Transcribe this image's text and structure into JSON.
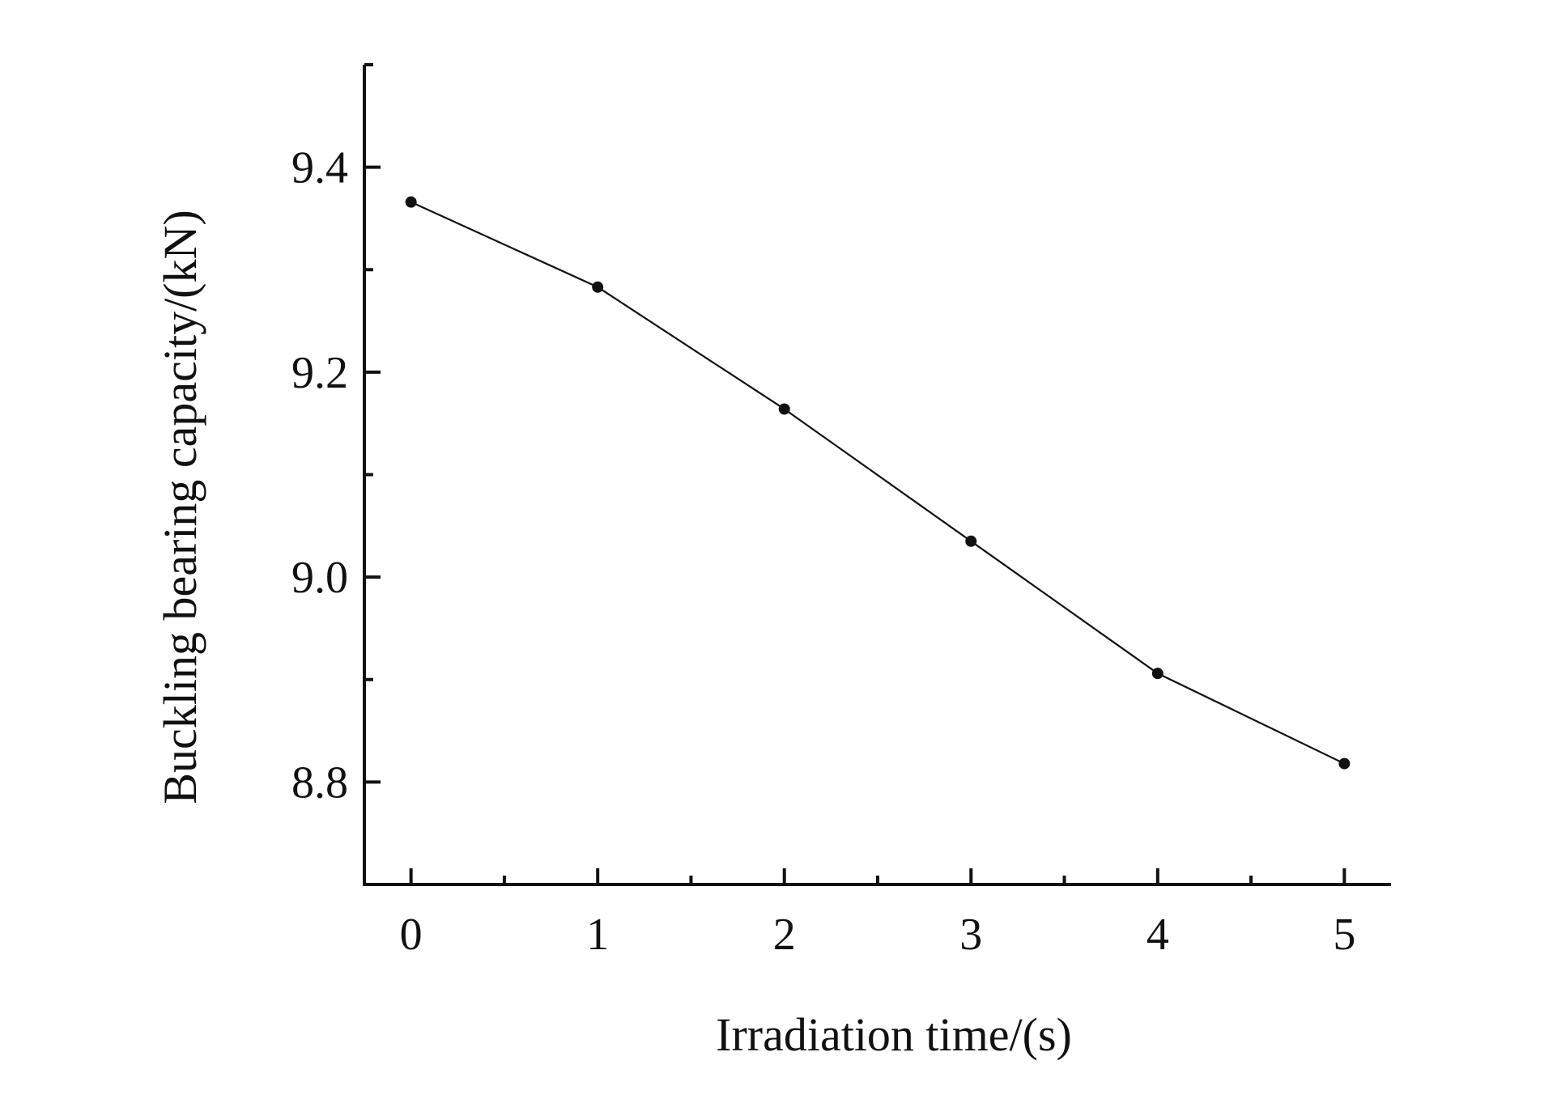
{
  "chart_data": {
    "type": "line",
    "title": "",
    "xlabel": "Irradiation time/(s)",
    "ylabel": "Buckling bearing capacity/(kN)",
    "x": [
      0,
      1,
      2,
      3,
      4,
      5
    ],
    "series": [
      {
        "values": [
          9.366,
          9.283,
          9.164,
          9.035,
          8.906,
          8.818
        ]
      }
    ],
    "xlim": [
      -0.25,
      5.25
    ],
    "ylim": [
      8.7,
      9.5
    ],
    "x_major_ticks": [
      0,
      1,
      2,
      3,
      4,
      5
    ],
    "x_minor_ticks": [
      0.5,
      1.5,
      2.5,
      3.5,
      4.5
    ],
    "x_tick_labels": [
      "0",
      "1",
      "2",
      "3",
      "4",
      "5"
    ],
    "y_major_ticks": [
      8.8,
      9.0,
      9.2,
      9.4
    ],
    "y_minor_ticks": [
      8.9,
      9.1,
      9.3,
      9.5
    ],
    "y_tick_labels": [
      "8.8",
      "9.0",
      "9.2",
      "9.4"
    ],
    "grid": false,
    "legend": "none",
    "marker": "circle",
    "color": "#111111"
  }
}
